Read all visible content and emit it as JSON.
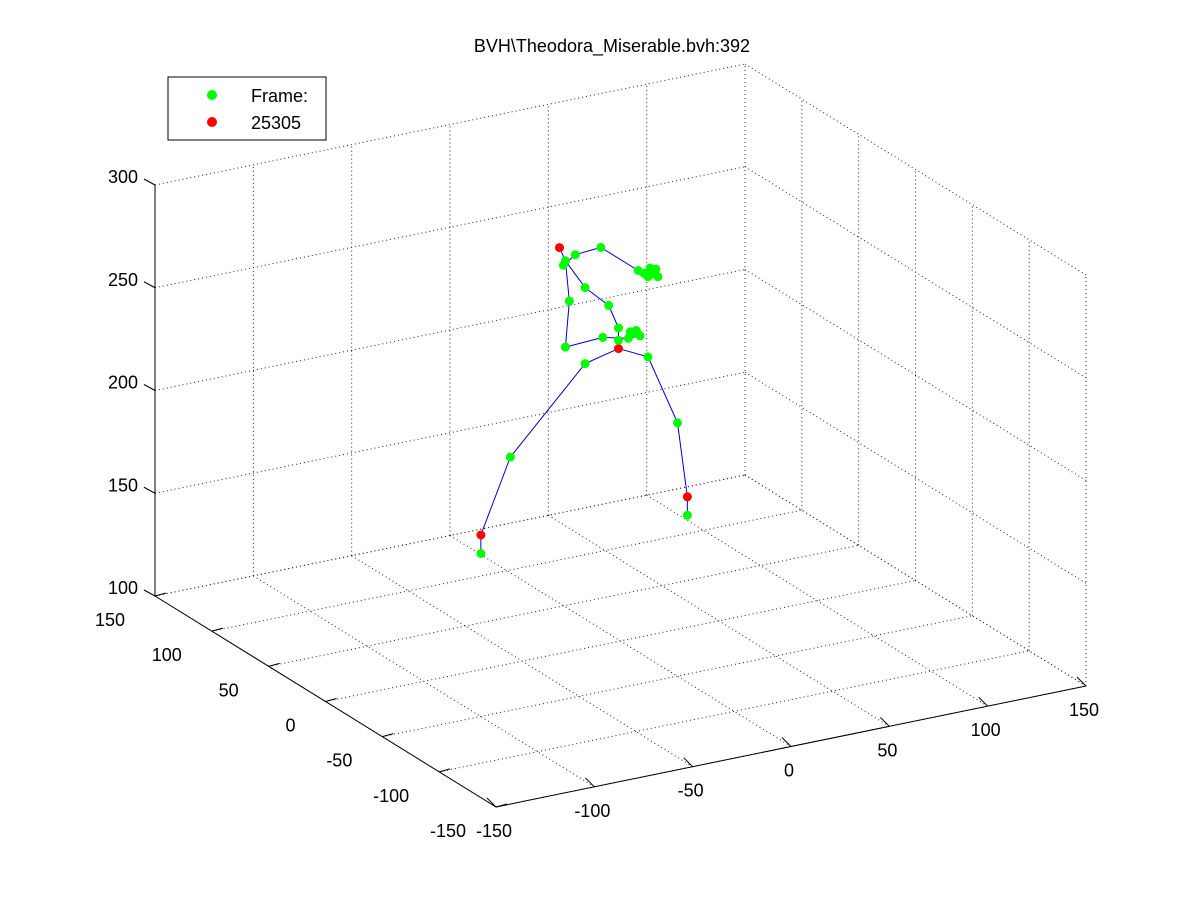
{
  "chart_data": {
    "type": "scatter",
    "title": "BVH\\Theodora_Miserable.bvh:392",
    "legend": {
      "location": "top-left",
      "entries": [
        {
          "label": "Frame:",
          "color": "#00ff00"
        },
        {
          "label": "25305",
          "color": "#ff0000"
        }
      ]
    },
    "axes": {
      "x": {
        "ticks": [
          "-150",
          "-100",
          "-50",
          "0",
          "50",
          "100",
          "150"
        ]
      },
      "y": {
        "ticks": [
          "-150",
          "-100",
          "-50",
          "0",
          "50",
          "100",
          "150"
        ]
      },
      "z": {
        "ticks": [
          "100",
          "150",
          "200",
          "250",
          "300"
        ]
      }
    },
    "grid": true,
    "box": true,
    "colors": {
      "joint": "#00ff00",
      "endpoint": "#ff0000",
      "bone": "#0000cc"
    },
    "joints": [
      {
        "id": 0,
        "x": 25,
        "y": 45,
        "z": 222,
        "type": "endpoint"
      },
      {
        "id": 1,
        "x": 25,
        "y": 45,
        "z": 226,
        "type": "joint"
      },
      {
        "id": 2,
        "x": 8,
        "y": 45,
        "z": 218,
        "type": "joint"
      },
      {
        "id": 3,
        "x": -30,
        "y": 45,
        "z": 180,
        "type": "joint"
      },
      {
        "id": 4,
        "x": -45,
        "y": 45,
        "z": 145,
        "type": "endpoint"
      },
      {
        "id": 5,
        "x": -45,
        "y": 45,
        "z": 136,
        "type": "joint"
      },
      {
        "id": 6,
        "x": 40,
        "y": 45,
        "z": 215,
        "type": "joint"
      },
      {
        "id": 7,
        "x": 55,
        "y": 45,
        "z": 180,
        "type": "joint"
      },
      {
        "id": 8,
        "x": 60,
        "y": 45,
        "z": 143,
        "type": "endpoint"
      },
      {
        "id": 9,
        "x": 60,
        "y": 45,
        "z": 134,
        "type": "joint"
      },
      {
        "id": 10,
        "x": 25,
        "y": 45,
        "z": 232,
        "type": "joint"
      },
      {
        "id": 11,
        "x": 20,
        "y": 45,
        "z": 244,
        "type": "joint"
      },
      {
        "id": 12,
        "x": 8,
        "y": 45,
        "z": 255,
        "type": "joint"
      },
      {
        "id": 13,
        "x": -2,
        "y": 45,
        "z": 270,
        "type": "joint"
      },
      {
        "id": 14,
        "x": -5,
        "y": 45,
        "z": 277,
        "type": "endpoint"
      },
      {
        "id": 15,
        "x": -3,
        "y": 45,
        "z": 268,
        "type": "joint"
      },
      {
        "id": 16,
        "x": 3,
        "y": 45,
        "z": 272,
        "type": "joint"
      },
      {
        "id": 17,
        "x": 16,
        "y": 45,
        "z": 273,
        "type": "joint"
      },
      {
        "id": 18,
        "x": 35,
        "y": 45,
        "z": 258,
        "type": "joint"
      },
      {
        "id": 19,
        "x": 40,
        "y": 45,
        "z": 254,
        "type": "joint"
      },
      {
        "id": 20,
        "x": 42,
        "y": 45,
        "z": 255,
        "type": "joint"
      },
      {
        "id": 21,
        "x": 44,
        "y": 45,
        "z": 257,
        "type": "joint"
      },
      {
        "id": 22,
        "x": 45,
        "y": 45,
        "z": 253,
        "type": "joint"
      },
      {
        "id": 23,
        "x": 41,
        "y": 45,
        "z": 258,
        "type": "joint"
      },
      {
        "id": 24,
        "x": 38,
        "y": 45,
        "z": 256,
        "type": "joint"
      },
      {
        "id": 25,
        "x": 0,
        "y": 45,
        "z": 250,
        "type": "joint"
      },
      {
        "id": 26,
        "x": -2,
        "y": 45,
        "z": 228,
        "type": "joint"
      },
      {
        "id": 27,
        "x": 17,
        "y": 45,
        "z": 229,
        "type": "joint"
      },
      {
        "id": 28,
        "x": 30,
        "y": 45,
        "z": 226,
        "type": "joint"
      },
      {
        "id": 29,
        "x": 33,
        "y": 45,
        "z": 228,
        "type": "joint"
      },
      {
        "id": 30,
        "x": 35,
        "y": 45,
        "z": 227,
        "type": "joint"
      },
      {
        "id": 31,
        "x": 36,
        "y": 45,
        "z": 226,
        "type": "joint"
      },
      {
        "id": 32,
        "x": 31,
        "y": 45,
        "z": 229,
        "type": "joint"
      },
      {
        "id": 33,
        "x": 34,
        "y": 45,
        "z": 229,
        "type": "joint"
      }
    ],
    "bones": [
      [
        0,
        1
      ],
      [
        0,
        2
      ],
      [
        2,
        3
      ],
      [
        3,
        4
      ],
      [
        4,
        5
      ],
      [
        0,
        6
      ],
      [
        6,
        7
      ],
      [
        7,
        8
      ],
      [
        8,
        9
      ],
      [
        1,
        10
      ],
      [
        10,
        11
      ],
      [
        11,
        12
      ],
      [
        12,
        13
      ],
      [
        13,
        14
      ],
      [
        13,
        15
      ],
      [
        15,
        16
      ],
      [
        16,
        17
      ],
      [
        17,
        18
      ],
      [
        18,
        19
      ],
      [
        19,
        20
      ],
      [
        19,
        21
      ],
      [
        19,
        22
      ],
      [
        19,
        23
      ],
      [
        19,
        24
      ],
      [
        13,
        25
      ],
      [
        25,
        26
      ],
      [
        26,
        27
      ],
      [
        27,
        28
      ],
      [
        28,
        29
      ],
      [
        28,
        30
      ],
      [
        28,
        31
      ],
      [
        28,
        32
      ],
      [
        28,
        33
      ]
    ]
  }
}
